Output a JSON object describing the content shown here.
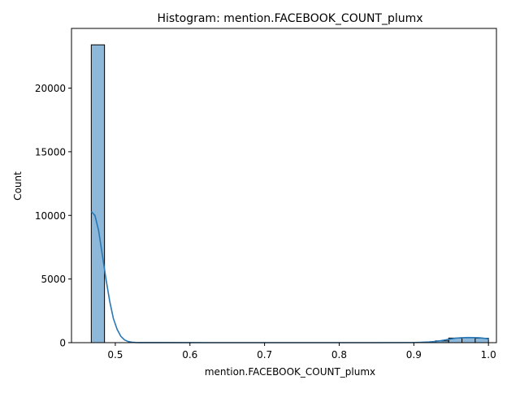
{
  "chart_data": {
    "type": "bar",
    "title": "Histogram: mention.FACEBOOK_COUNT_plumx",
    "xlabel": "mention.FACEBOOK_COUNT_plumx",
    "ylabel": "Count",
    "xlim": [
      0.4413,
      1.0107
    ],
    "ylim": [
      0,
      24690
    ],
    "xticks": [
      0.5,
      0.6,
      0.7,
      0.8,
      0.9,
      1.0
    ],
    "xtick_labels": [
      "0.5",
      "0.6",
      "0.7",
      "0.8",
      "0.9",
      "1.0"
    ],
    "yticks": [
      0,
      5000,
      10000,
      15000,
      20000
    ],
    "ytick_labels": [
      "0",
      "5000",
      "10000",
      "15000",
      "20000"
    ],
    "bins": {
      "start": 0.4678,
      "width": 0.01774,
      "counts": [
        23400,
        0,
        0,
        0,
        0,
        0,
        0,
        0,
        0,
        0,
        0,
        0,
        0,
        0,
        0,
        0,
        0,
        0,
        0,
        0,
        0,
        0,
        0,
        0,
        0,
        0,
        140,
        360,
        380,
        350
      ]
    },
    "kde": {
      "x": [
        0.4678,
        0.4727,
        0.4776,
        0.4826,
        0.4875,
        0.4925,
        0.4974,
        0.5024,
        0.5073,
        0.5123,
        0.5172,
        0.5221,
        0.5271,
        0.5331,
        0.545,
        0.57,
        0.65,
        0.75,
        0.85,
        0.9,
        0.91,
        0.92,
        0.93,
        0.9398,
        0.9496,
        0.9568,
        0.9647,
        0.9726,
        0.9805,
        0.9884,
        0.9963,
        1.0003
      ],
      "y": [
        10300,
        10000,
        8820,
        6900,
        5000,
        3250,
        1900,
        1050,
        510,
        220,
        90,
        35,
        12,
        5,
        2,
        1,
        0,
        0,
        0,
        8,
        25,
        55,
        100,
        190,
        290,
        360,
        390,
        400,
        395,
        380,
        330,
        300
      ]
    },
    "colors": {
      "bar_fill": "#8db8d9",
      "bar_edge": "#000000",
      "kde_line": "#2878b5"
    }
  }
}
